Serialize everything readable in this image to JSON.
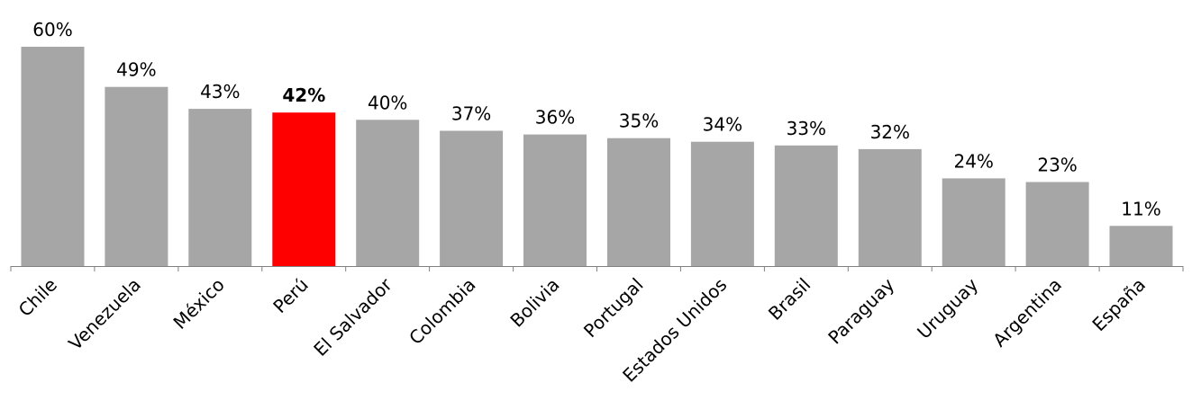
{
  "chart_data": {
    "type": "bar",
    "categories": [
      "Chile",
      "Venezuela",
      "México",
      "Perú",
      "El Salvador",
      "Colombia",
      "Bolivia",
      "Portugal",
      "Estados Unidos",
      "Brasil",
      "Paraguay",
      "Uruguay",
      "Argentina",
      "España"
    ],
    "values": [
      60,
      49,
      43,
      42,
      40,
      37,
      36,
      35,
      34,
      33,
      32,
      24,
      23,
      11
    ],
    "value_labels": [
      "60%",
      "49%",
      "43%",
      "42%",
      "40%",
      "37%",
      "36%",
      "35%",
      "34%",
      "33%",
      "32%",
      "24%",
      "23%",
      "11%"
    ],
    "ylim": [
      0,
      60
    ],
    "highlight_index": 3,
    "grid": false,
    "legend": "none",
    "colors": {
      "bar": "#a6a6a6",
      "highlight_bar": "#ff0000",
      "highlight_label": "#ff0000",
      "axis": "#808080",
      "text": "#000000"
    }
  }
}
